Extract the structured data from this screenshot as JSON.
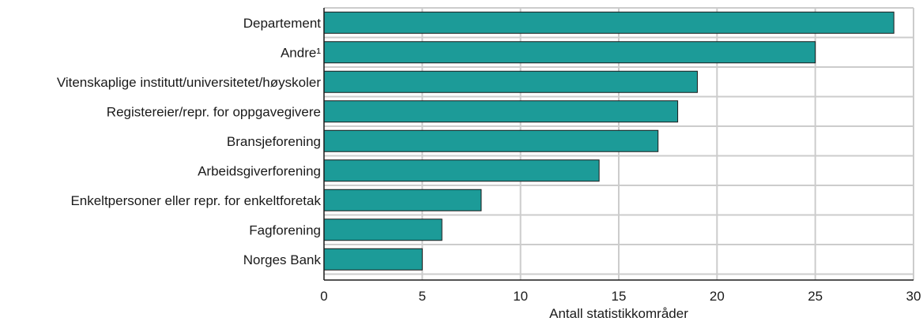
{
  "chart_data": {
    "type": "bar",
    "orientation": "horizontal",
    "categories": [
      "Departement",
      "Andre¹",
      "Vitenskaplige institutt/universitetet/høyskoler",
      "Registereier/repr. for oppgavegivere",
      "Bransjeforening",
      "Arbeidsgiverforening",
      "Enkeltpersoner eller repr. for enkeltforetak",
      "Fagforening",
      "Norges Bank"
    ],
    "values": [
      29,
      25,
      19,
      18,
      17,
      14,
      8,
      6,
      5
    ],
    "xlabel": "Antall statistikkområder",
    "ylabel": "",
    "xlim": [
      0,
      30
    ],
    "xticks": [
      0,
      5,
      10,
      15,
      20,
      25,
      30
    ],
    "grid": true,
    "legend": "none",
    "colors": {
      "bar_fill": "#1c9b98",
      "bar_stroke": "#1a1a1a",
      "grid": "#cccccc",
      "axis": "#1a1a1a"
    }
  }
}
